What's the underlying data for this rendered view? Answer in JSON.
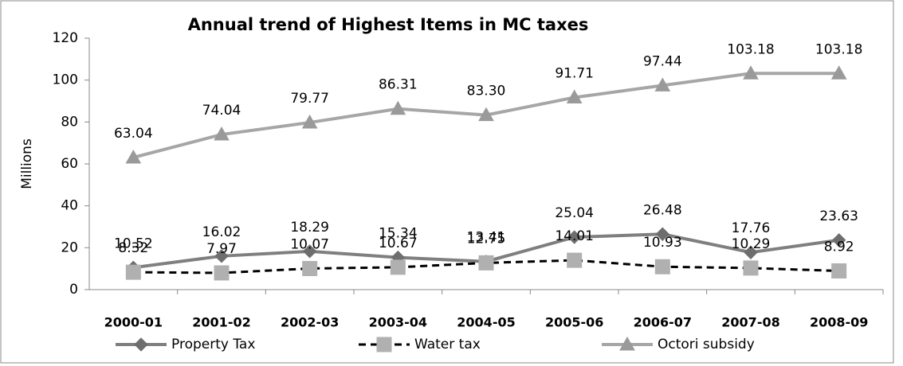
{
  "chart_data": {
    "type": "line",
    "title": "Annual trend of Highest Items in MC taxes",
    "y_label": "Millions",
    "categories": [
      "2000-01",
      "2001-02",
      "2002-03",
      "2003-04",
      "2004-05",
      "2005-06",
      "2006-07",
      "2007-08",
      "2008-09"
    ],
    "series": [
      {
        "name": "Property Tax",
        "color": "#7f7f7f",
        "marker": "diamond",
        "dash": false,
        "marker_color": "#6e6e6e",
        "values": [
          10.52,
          16.02,
          18.29,
          15.34,
          13.41,
          25.04,
          26.48,
          17.76,
          23.63
        ]
      },
      {
        "name": "Water tax",
        "color": "#000000",
        "marker": "square",
        "dash": true,
        "marker_color": "#b0b0b0",
        "values": [
          8.32,
          7.97,
          10.07,
          10.67,
          12.75,
          14.01,
          10.93,
          10.29,
          8.92
        ]
      },
      {
        "name": "Octori subsidy",
        "color": "#a6a6a6",
        "marker": "triangle",
        "dash": false,
        "marker_color": "#9a9a9a",
        "values": [
          63.04,
          74.04,
          79.77,
          86.31,
          83.3,
          91.71,
          97.44,
          103.18,
          103.18
        ],
        "value_labels": [
          "63.04",
          "74.04",
          "79.77",
          "86.31",
          "83.30",
          "91.71",
          "97.44",
          "103.18",
          "103.18"
        ]
      }
    ],
    "ylim": [
      0,
      120
    ],
    "yticks": [
      0,
      20,
      40,
      60,
      80,
      100,
      120
    ],
    "legend": "bottom"
  }
}
